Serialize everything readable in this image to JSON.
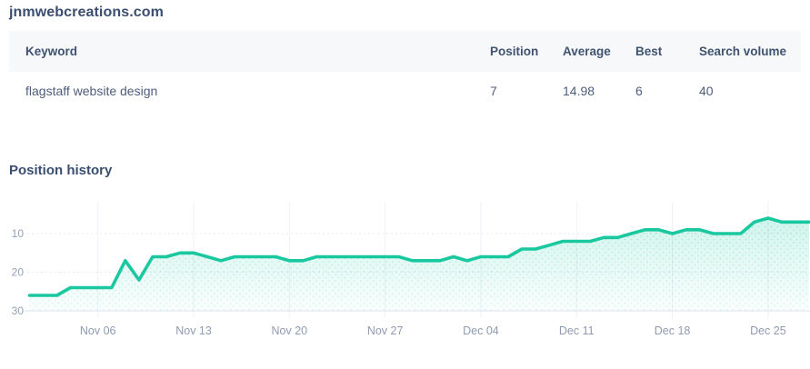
{
  "site": {
    "title": "jnmwebcreations.com"
  },
  "table": {
    "columns": [
      "Keyword",
      "Position",
      "Average",
      "Best",
      "Search volume"
    ],
    "rows": [
      {
        "keyword": "flagstaff website design",
        "position": "7",
        "average": "14.98",
        "best": "6",
        "search_volume": "40"
      }
    ]
  },
  "section": {
    "title": "Position history"
  },
  "chart_data": {
    "type": "area",
    "title": "Position history",
    "x": [
      "Nov 01",
      "Nov 02",
      "Nov 03",
      "Nov 04",
      "Nov 05",
      "Nov 06",
      "Nov 07",
      "Nov 08",
      "Nov 09",
      "Nov 10",
      "Nov 11",
      "Nov 12",
      "Nov 13",
      "Nov 14",
      "Nov 15",
      "Nov 16",
      "Nov 17",
      "Nov 18",
      "Nov 19",
      "Nov 20",
      "Nov 21",
      "Nov 22",
      "Nov 23",
      "Nov 24",
      "Nov 25",
      "Nov 26",
      "Nov 27",
      "Nov 28",
      "Nov 29",
      "Nov 30",
      "Dec 01",
      "Dec 02",
      "Dec 03",
      "Dec 04",
      "Dec 05",
      "Dec 06",
      "Dec 07",
      "Dec 08",
      "Dec 09",
      "Dec 10",
      "Dec 11",
      "Dec 12",
      "Dec 13",
      "Dec 14",
      "Dec 15",
      "Dec 16",
      "Dec 17",
      "Dec 18",
      "Dec 19",
      "Dec 20",
      "Dec 21",
      "Dec 22",
      "Dec 23",
      "Dec 24",
      "Dec 25",
      "Dec 26",
      "Dec 27",
      "Dec 28"
    ],
    "values": [
      26,
      26,
      26,
      24,
      24,
      24,
      24,
      17,
      22,
      16,
      16,
      15,
      15,
      16,
      17,
      16,
      16,
      16,
      16,
      17,
      17,
      16,
      16,
      16,
      16,
      16,
      16,
      16,
      17,
      17,
      17,
      16,
      17,
      16,
      16,
      16,
      14,
      14,
      13,
      12,
      12,
      12,
      11,
      11,
      10,
      9,
      9,
      10,
      9,
      9,
      10,
      10,
      10,
      7,
      6,
      7,
      7,
      7
    ],
    "x_tick_labels": [
      "Nov 06",
      "Nov 13",
      "Nov 20",
      "Nov 27",
      "Dec 04",
      "Dec 11",
      "Dec 18",
      "Dec 25"
    ],
    "x_tick_indices": [
      5,
      12,
      19,
      26,
      33,
      40,
      47,
      54
    ],
    "y_ticks": [
      10,
      20,
      30
    ],
    "y_axis_inverted": true,
    "ylim": [
      1,
      30
    ],
    "grid": true,
    "legend": false,
    "line_color": "#1ac8a0",
    "fill_color": "#1ac8a0"
  }
}
